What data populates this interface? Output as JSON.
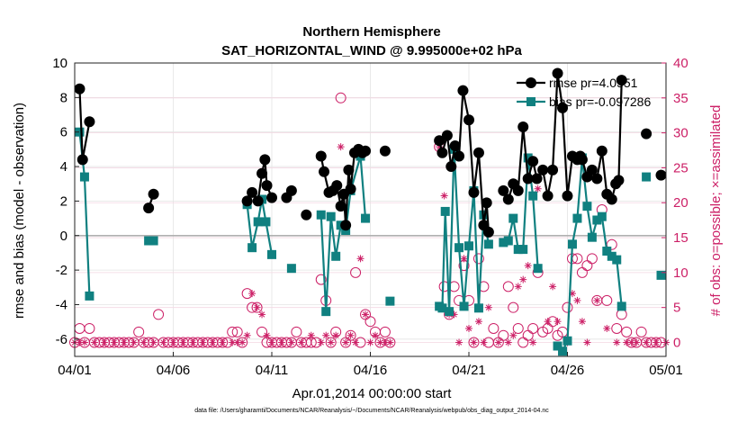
{
  "chart_data": {
    "type": "line",
    "title": "Northern Hemisphere",
    "subtitle": "SAT_HORIZONTAL_WIND @ 9.995000e+02 hPa",
    "xlabel": "Apr.01,2014 00:00:00 start",
    "ylabel_left": "rmse and bias (model - observation)",
    "ylabel_right": "# of obs: o=possible; ×=assimilated",
    "footer": "data file: /Users/gharamti/Documents/NCAR/Reanalysis/~/Documents/NCAR/Reanalysis/webpub/obs_diag_output_2014-04.nc",
    "xlim": [
      0,
      30
    ],
    "ylim_left": [
      -7,
      10
    ],
    "ylim_right": [
      -2,
      40
    ],
    "x_ticks": [
      0,
      5,
      10,
      15,
      20,
      25,
      30
    ],
    "x_tick_labels": [
      "04/01",
      "04/06",
      "04/11",
      "04/16",
      "04/21",
      "04/26",
      "05/01"
    ],
    "y_ticks_left": [
      -6,
      -4,
      -2,
      0,
      2,
      4,
      6,
      8,
      10
    ],
    "y_ticks_right": [
      0,
      5,
      10,
      15,
      20,
      25,
      30,
      35,
      40
    ],
    "grid": true,
    "legend_position": "top-right",
    "colors": {
      "rmse": "#000000",
      "bias": "#108080",
      "obs": "#cc1f66",
      "zero": "#b0b0b0"
    },
    "series": [
      {
        "name": "rmse pr=4.0551",
        "marker": "circle",
        "points": [
          [
            0.25,
            8.5
          ],
          [
            0.4,
            4.4
          ],
          [
            0.75,
            6.6
          ],
          null,
          [
            3.75,
            1.6
          ],
          [
            4.0,
            2.4
          ],
          null,
          [
            8.75,
            2.0
          ],
          [
            9.0,
            2.5
          ],
          [
            9.3,
            2.0
          ],
          [
            9.5,
            3.6
          ],
          [
            9.65,
            4.4
          ],
          [
            9.75,
            2.9
          ],
          [
            10.0,
            2.2
          ],
          null,
          [
            10.75,
            2.2
          ],
          [
            11.0,
            2.6
          ],
          null,
          [
            11.75,
            1.2
          ],
          null,
          [
            12.5,
            4.6
          ],
          [
            12.65,
            3.7
          ],
          [
            12.9,
            2.5
          ],
          [
            13.1,
            2.6
          ],
          [
            13.3,
            2.9
          ],
          [
            13.5,
            1.7
          ],
          [
            13.65,
            2.4
          ],
          [
            13.75,
            0.6
          ],
          [
            13.9,
            3.8
          ],
          [
            14.0,
            2.7
          ],
          [
            14.2,
            4.8
          ],
          [
            14.4,
            5.0
          ],
          [
            14.6,
            4.8
          ],
          [
            14.75,
            4.9
          ],
          null,
          [
            15.75,
            4.9
          ],
          null,
          [
            18.5,
            5.5
          ],
          [
            18.65,
            4.8
          ],
          [
            18.9,
            5.8
          ],
          [
            19.1,
            4.0
          ],
          [
            19.3,
            5.2
          ],
          [
            19.5,
            4.6
          ],
          [
            19.7,
            8.4
          ],
          [
            20.0,
            6.7
          ],
          [
            20.25,
            2.5
          ],
          [
            20.5,
            4.8
          ],
          [
            20.75,
            0.6
          ],
          [
            20.9,
            1.9
          ],
          [
            21.0,
            0.2
          ],
          null,
          [
            21.75,
            2.6
          ],
          [
            22.0,
            2.1
          ],
          [
            22.25,
            3.0
          ],
          [
            22.5,
            2.6
          ],
          [
            22.75,
            6.3
          ],
          [
            23.0,
            3.3
          ],
          [
            23.25,
            4.3
          ],
          [
            23.45,
            3.3
          ],
          [
            23.75,
            3.8
          ],
          [
            24.0,
            2.3
          ],
          [
            24.25,
            3.8
          ],
          [
            24.5,
            9.4
          ],
          [
            24.75,
            7.4
          ],
          [
            25.0,
            2.3
          ],
          [
            25.25,
            4.6
          ],
          [
            25.5,
            4.4
          ],
          [
            25.65,
            4.6
          ],
          [
            25.75,
            4.4
          ],
          [
            26.0,
            3.4
          ],
          [
            26.25,
            3.8
          ],
          [
            26.5,
            3.3
          ],
          [
            26.75,
            4.9
          ],
          [
            27.0,
            2.4
          ],
          [
            27.25,
            2.1
          ],
          [
            27.45,
            3.0
          ],
          [
            27.6,
            3.2
          ],
          [
            27.75,
            9.0
          ],
          null,
          [
            29.0,
            5.9
          ],
          null,
          [
            29.75,
            3.5
          ]
        ]
      },
      {
        "name": "bias pr=-0.097286",
        "marker": "square",
        "points": [
          [
            0.25,
            6.0
          ],
          [
            0.5,
            3.4
          ],
          [
            0.75,
            -3.5
          ],
          null,
          [
            3.75,
            -0.3
          ],
          [
            4.0,
            -0.3
          ],
          null,
          [
            8.75,
            1.8
          ],
          [
            9.0,
            -0.7
          ],
          [
            9.3,
            0.8
          ],
          [
            9.5,
            2.1
          ],
          [
            9.7,
            0.8
          ],
          [
            10.0,
            -1.1
          ],
          null,
          [
            11.0,
            -1.9
          ],
          null,
          [
            12.5,
            1.2
          ],
          [
            12.75,
            -4.4
          ],
          [
            13.0,
            1.1
          ],
          [
            13.25,
            -1.2
          ],
          [
            13.5,
            0.6
          ],
          [
            13.75,
            0.3
          ],
          [
            14.0,
            2.6
          ],
          [
            14.5,
            4.6
          ],
          [
            14.75,
            1.0
          ],
          null,
          [
            16.0,
            -3.8
          ],
          null,
          [
            18.5,
            -4.1
          ],
          [
            18.65,
            -4.2
          ],
          [
            18.8,
            1.4
          ],
          [
            19.0,
            -4.4
          ],
          [
            19.25,
            5.0
          ],
          [
            19.5,
            -0.7
          ],
          [
            19.75,
            -4.1
          ],
          [
            20.0,
            -0.6
          ],
          [
            20.25,
            2.6
          ],
          [
            20.5,
            -4.2
          ],
          [
            20.75,
            1.2
          ],
          [
            21.0,
            -0.5
          ],
          null,
          [
            21.75,
            -0.4
          ],
          [
            22.0,
            -0.3
          ],
          [
            22.25,
            1.0
          ],
          [
            22.5,
            -0.8
          ],
          [
            22.75,
            -0.8
          ],
          [
            23.0,
            4.5
          ],
          [
            23.25,
            2.3
          ],
          [
            23.5,
            -1.9
          ],
          null,
          [
            24.5,
            -6.4
          ],
          [
            24.75,
            -6.7
          ],
          [
            25.0,
            -6.1
          ],
          [
            25.25,
            -0.5
          ],
          [
            25.5,
            1.0
          ],
          [
            25.75,
            4.5
          ],
          [
            26.0,
            1.7
          ],
          [
            26.25,
            -0.1
          ],
          [
            26.5,
            0.9
          ],
          [
            26.75,
            1.1
          ],
          [
            27.0,
            -0.9
          ],
          [
            27.25,
            -1.2
          ],
          [
            27.5,
            -1.4
          ],
          [
            27.75,
            -4.1
          ],
          null,
          [
            29.0,
            3.4
          ],
          null,
          [
            29.75,
            -2.3
          ]
        ]
      }
    ],
    "obs_possible_x": [
      0.0,
      0.25,
      0.5,
      0.75,
      1.0,
      1.25,
      1.5,
      1.75,
      2.0,
      2.25,
      2.5,
      2.75,
      3.0,
      3.25,
      3.5,
      3.75,
      4.0,
      4.25,
      4.5,
      4.75,
      5.0,
      5.25,
      5.5,
      5.75,
      6.0,
      6.25,
      6.5,
      6.75,
      7.0,
      7.25,
      7.5,
      7.75,
      8.0,
      8.25,
      8.5,
      8.75,
      9.0,
      9.25,
      9.5,
      9.75,
      10.0,
      10.25,
      10.5,
      10.75,
      11.0,
      11.25,
      11.5,
      11.75,
      12.0,
      12.25,
      12.5,
      12.75,
      13.0,
      13.25,
      13.5,
      13.75,
      14.0,
      14.25,
      14.5,
      14.75,
      15.0,
      15.25,
      15.5,
      15.75,
      16.0,
      18.5,
      18.75,
      19.0,
      19.25,
      19.5,
      19.75,
      20.0,
      20.25,
      20.5,
      20.75,
      21.0,
      21.25,
      21.5,
      21.75,
      22.0,
      22.25,
      22.5,
      22.75,
      23.0,
      23.25,
      23.5,
      23.75,
      24.0,
      24.25,
      24.5,
      24.75,
      25.0,
      25.25,
      25.5,
      25.75,
      26.0,
      26.25,
      26.5,
      26.75,
      27.0,
      27.25,
      27.5,
      27.75,
      28.0,
      28.25,
      28.5,
      28.75,
      29.0,
      29.25,
      29.5,
      29.75,
      30.0
    ],
    "obs_possible": [
      0,
      2,
      0,
      2,
      0,
      0,
      0,
      0,
      0,
      0,
      0,
      0,
      0,
      1.5,
      0,
      0,
      0,
      4,
      0,
      0,
      0,
      0,
      0,
      0,
      0,
      0,
      0,
      0,
      0,
      0,
      0,
      0,
      1.5,
      1.5,
      0,
      7,
      5,
      5,
      1.5,
      0,
      0,
      0,
      0,
      0,
      0,
      1.5,
      0,
      0,
      0,
      0,
      9,
      6,
      0,
      1.5,
      35,
      0,
      1,
      10,
      0,
      4,
      3,
      1.5,
      0,
      1.5,
      0,
      28,
      8,
      4,
      8,
      6,
      11,
      6,
      0,
      12,
      8,
      0,
      2,
      0,
      1,
      8,
      5,
      2,
      0,
      1,
      2,
      10,
      1.5,
      2,
      3,
      1,
      1.5,
      5,
      12,
      12,
      10,
      11,
      12,
      6,
      19,
      6,
      14,
      2,
      4,
      1.5,
      0,
      0,
      1.5,
      0,
      0,
      0,
      0
    ],
    "obs_assim_x": [
      0.0,
      0.25,
      0.5,
      1.0,
      1.5,
      2.0,
      2.5,
      3.0,
      3.5,
      4.0,
      4.5,
      5.0,
      5.5,
      6.0,
      6.5,
      7.0,
      7.5,
      8.0,
      8.25,
      8.5,
      8.75,
      9.0,
      9.25,
      9.5,
      9.75,
      10.0,
      10.5,
      11.0,
      11.5,
      12.0,
      12.5,
      12.75,
      13.0,
      13.25,
      13.5,
      13.75,
      14.0,
      14.25,
      14.5,
      14.75,
      15.0,
      15.25,
      15.5,
      15.75,
      16.0,
      18.5,
      18.75,
      19.0,
      19.25,
      19.5,
      19.75,
      20.0,
      20.25,
      20.5,
      20.75,
      21.0,
      21.5,
      22.0,
      22.25,
      22.5,
      22.75,
      23.0,
      23.25,
      23.5,
      24.0,
      24.25,
      24.5,
      25.0,
      25.25,
      25.5,
      25.75,
      26.0,
      26.5,
      27.0,
      27.5,
      28.0,
      28.25,
      28.5,
      29.0,
      29.5,
      30.0
    ],
    "obs_assim": [
      0,
      0,
      0,
      0,
      0,
      0,
      0,
      0,
      0,
      0,
      0,
      0,
      0,
      0,
      0,
      0,
      0,
      0,
      0,
      0,
      1,
      7,
      5,
      4,
      1,
      0,
      0,
      0,
      0,
      1,
      0,
      1,
      0,
      1,
      28,
      0,
      1,
      0,
      12,
      4,
      0,
      1,
      0,
      0,
      0,
      28,
      21,
      4,
      4,
      0,
      12,
      2,
      0,
      3,
      0,
      5,
      0,
      0,
      1,
      8,
      9,
      11,
      0,
      22,
      3,
      8,
      3,
      0,
      7,
      6,
      3,
      0,
      6,
      2,
      0,
      0,
      0,
      0,
      0,
      0,
      0
    ]
  }
}
